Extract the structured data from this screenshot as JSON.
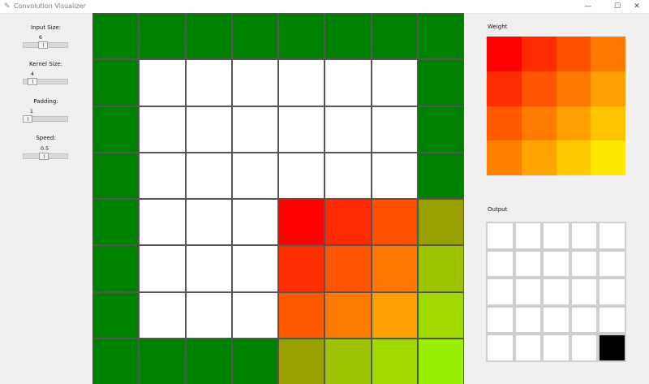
{
  "window": {
    "title": "Convolution Visualizer",
    "minimize_glyph": "—",
    "maximize_glyph": "☐",
    "close_glyph": "✕",
    "icon": "feather-icon"
  },
  "controls": [
    {
      "key": "input-size",
      "label": "Input Size:",
      "value": "6",
      "min": 1,
      "max": 10,
      "level": 0.44
    },
    {
      "key": "kernel-size",
      "label": "Kernel Size:",
      "value": "4",
      "min": 1,
      "max": 10,
      "level": 0.2
    },
    {
      "key": "padding",
      "label": "Padding:",
      "value": "1",
      "min": 0,
      "max": 10,
      "level": 0.1
    },
    {
      "key": "speed",
      "label": "Speed:",
      "value": "0.5",
      "min": 0.1,
      "max": 2,
      "level": 0.47
    }
  ],
  "grid": {
    "rows": [
      [
        "#008000",
        "#008000",
        "#008000",
        "#008000",
        "#008000",
        "#008000",
        "#008000",
        "#008000"
      ],
      [
        "#008000",
        "#ffffff",
        "#ffffff",
        "#ffffff",
        "#ffffff",
        "#ffffff",
        "#ffffff",
        "#008000"
      ],
      [
        "#008000",
        "#ffffff",
        "#ffffff",
        "#ffffff",
        "#ffffff",
        "#ffffff",
        "#ffffff",
        "#008000"
      ],
      [
        "#008000",
        "#ffffff",
        "#ffffff",
        "#ffffff",
        "#ffffff",
        "#ffffff",
        "#ffffff",
        "#008000"
      ],
      [
        "#008000",
        "#ffffff",
        "#ffffff",
        "#ffffff",
        "#ff0000",
        "#ff2a00",
        "#ff5000",
        "#98a000"
      ],
      [
        "#008000",
        "#ffffff",
        "#ffffff",
        "#ffffff",
        "#ff2e00",
        "#ff5500",
        "#ff7800",
        "#9cc500"
      ],
      [
        "#008000",
        "#ffffff",
        "#ffffff",
        "#ffffff",
        "#ff5a00",
        "#ff7c00",
        "#ff9f00",
        "#a0d800"
      ],
      [
        "#008000",
        "#008000",
        "#008000",
        "#008000",
        "#98a000",
        "#9cc500",
        "#a0d800",
        "#98f000"
      ]
    ]
  },
  "weight": {
    "label": "Weight",
    "rows": [
      [
        "#ff0000",
        "#ff2a00",
        "#ff5000",
        "#ff7800"
      ],
      [
        "#ff2e00",
        "#ff5500",
        "#ff7800",
        "#ffa000"
      ],
      [
        "#ff5a00",
        "#ff7c00",
        "#ff9f00",
        "#ffc400"
      ],
      [
        "#ff8000",
        "#ffa400",
        "#ffc800",
        "#ffe800"
      ]
    ]
  },
  "output": {
    "label": "Output",
    "rows": [
      [
        "#ffffff",
        "#ffffff",
        "#ffffff",
        "#ffffff",
        "#ffffff"
      ],
      [
        "#ffffff",
        "#ffffff",
        "#ffffff",
        "#ffffff",
        "#ffffff"
      ],
      [
        "#ffffff",
        "#ffffff",
        "#ffffff",
        "#ffffff",
        "#ffffff"
      ],
      [
        "#ffffff",
        "#ffffff",
        "#ffffff",
        "#ffffff",
        "#ffffff"
      ],
      [
        "#ffffff",
        "#ffffff",
        "#ffffff",
        "#ffffff",
        "#000000"
      ]
    ]
  }
}
